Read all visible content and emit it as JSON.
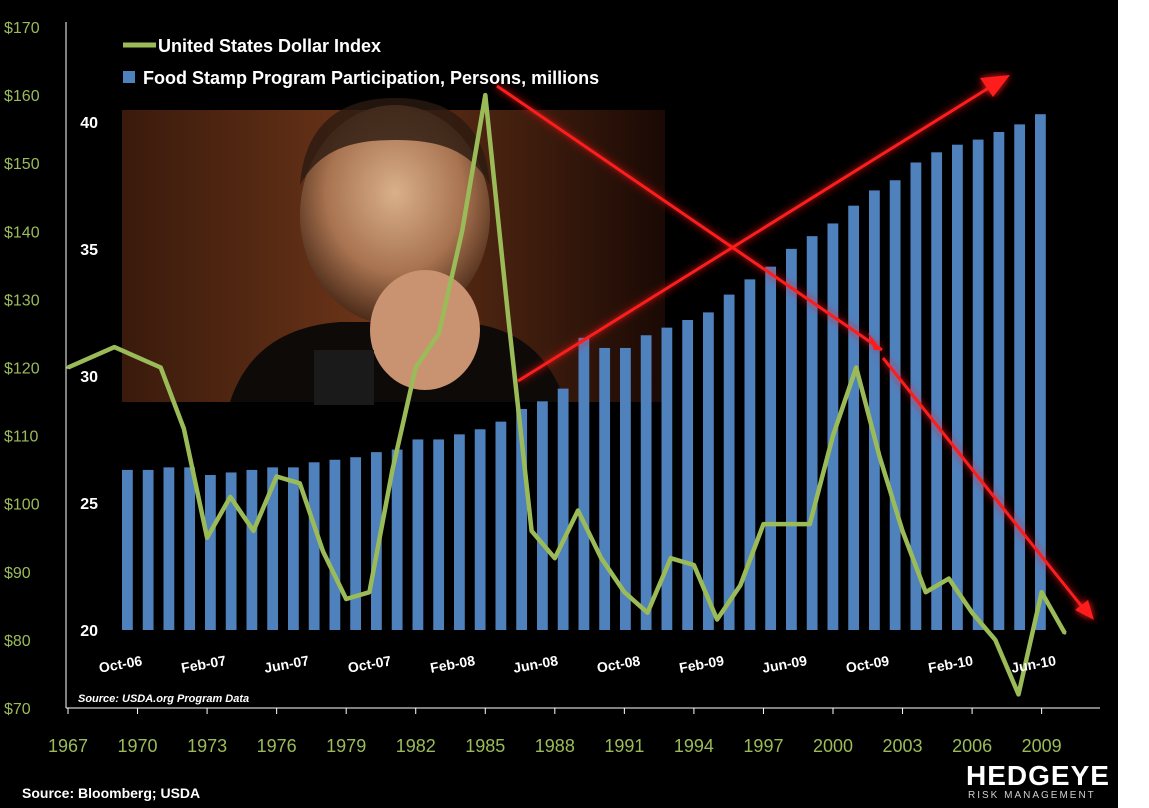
{
  "source": "Source: Bloomberg; USDA",
  "logo": {
    "name": "HEDGEYE",
    "tagline": "RISK MANAGEMENT"
  },
  "colors": {
    "line": "#9bbb59",
    "bars": "#4f81bd",
    "arrows": "#ff1a1a",
    "background": "#000000"
  },
  "chart_data": [
    {
      "type": "line",
      "series": [
        {
          "name": "United States Dollar Index",
          "color": "#9bbb59"
        }
      ],
      "x": [
        1967,
        1969,
        1971,
        1972,
        1973,
        1974,
        1975,
        1976,
        1977,
        1978,
        1979,
        1980,
        1981,
        1982,
        1983,
        1984,
        1985,
        1986,
        1987,
        1988,
        1989,
        1990,
        1991,
        1992,
        1993,
        1994,
        1995,
        1996,
        1997,
        1998,
        1999,
        2000,
        2001,
        2002,
        2003,
        2004,
        2005,
        2006,
        2007,
        2008,
        2009,
        2010
      ],
      "y": [
        120,
        123,
        120,
        111,
        95,
        101,
        96,
        104,
        103,
        93,
        86,
        87,
        105,
        120,
        125,
        140,
        160,
        127,
        96,
        92,
        99,
        92,
        87,
        84,
        92,
        91,
        83,
        88,
        97,
        97,
        97,
        110,
        120,
        107,
        96,
        87,
        89,
        84,
        80,
        72,
        87,
        81
      ],
      "y_ticks": [
        "$70",
        "$80",
        "$90",
        "$100",
        "$110",
        "$120",
        "$130",
        "$140",
        "$150",
        "$160",
        "$170"
      ],
      "ylim": [
        70,
        170
      ],
      "x_ticks": [
        "1967",
        "1970",
        "1973",
        "1976",
        "1979",
        "1982",
        "1985",
        "1988",
        "1991",
        "1994",
        "1997",
        "2000",
        "2003",
        "2006",
        "2009"
      ]
    },
    {
      "type": "bar",
      "series": [
        {
          "name": "Food Stamp Program Participation, Persons, millions",
          "color": "#4f81bd"
        }
      ],
      "categories": [
        "Oct-06",
        "",
        "",
        "",
        "Feb-07",
        "",
        "",
        "",
        "Jun-07",
        "",
        "",
        "",
        "Oct-07",
        "",
        "",
        "",
        "Feb-08",
        "",
        "",
        "",
        "Jun-08",
        "",
        "",
        "",
        "Oct-08",
        "",
        "",
        "",
        "Feb-09",
        "",
        "",
        "",
        "Jun-09",
        "",
        "",
        "",
        "Oct-09",
        "",
        "",
        "",
        "Feb-10",
        "",
        "",
        "",
        "Jun-10"
      ],
      "values": [
        26.3,
        26.3,
        26.4,
        26.4,
        26.1,
        26.2,
        26.3,
        26.4,
        26.4,
        26.6,
        26.7,
        26.8,
        27.0,
        27.1,
        27.5,
        27.5,
        27.7,
        27.9,
        28.2,
        28.7,
        29.0,
        29.5,
        31.5,
        31.1,
        31.1,
        31.6,
        31.9,
        32.2,
        32.5,
        33.2,
        33.8,
        34.3,
        35.0,
        35.5,
        36.0,
        36.7,
        37.3,
        37.7,
        38.4,
        38.8,
        39.1,
        39.3,
        39.6,
        39.9,
        40.3
      ],
      "y_ticks": [
        "20",
        "25",
        "30",
        "35",
        "40"
      ],
      "ylim": [
        20,
        42
      ],
      "x_tick_labels": [
        "Oct-06",
        "Feb-07",
        "Jun-07",
        "Oct-07",
        "Feb-08",
        "Jun-08",
        "Oct-08",
        "Feb-09",
        "Jun-09",
        "Oct-09",
        "Feb-10",
        "Jun-10"
      ],
      "annotation": "Source: USDA.org Program Data"
    }
  ]
}
